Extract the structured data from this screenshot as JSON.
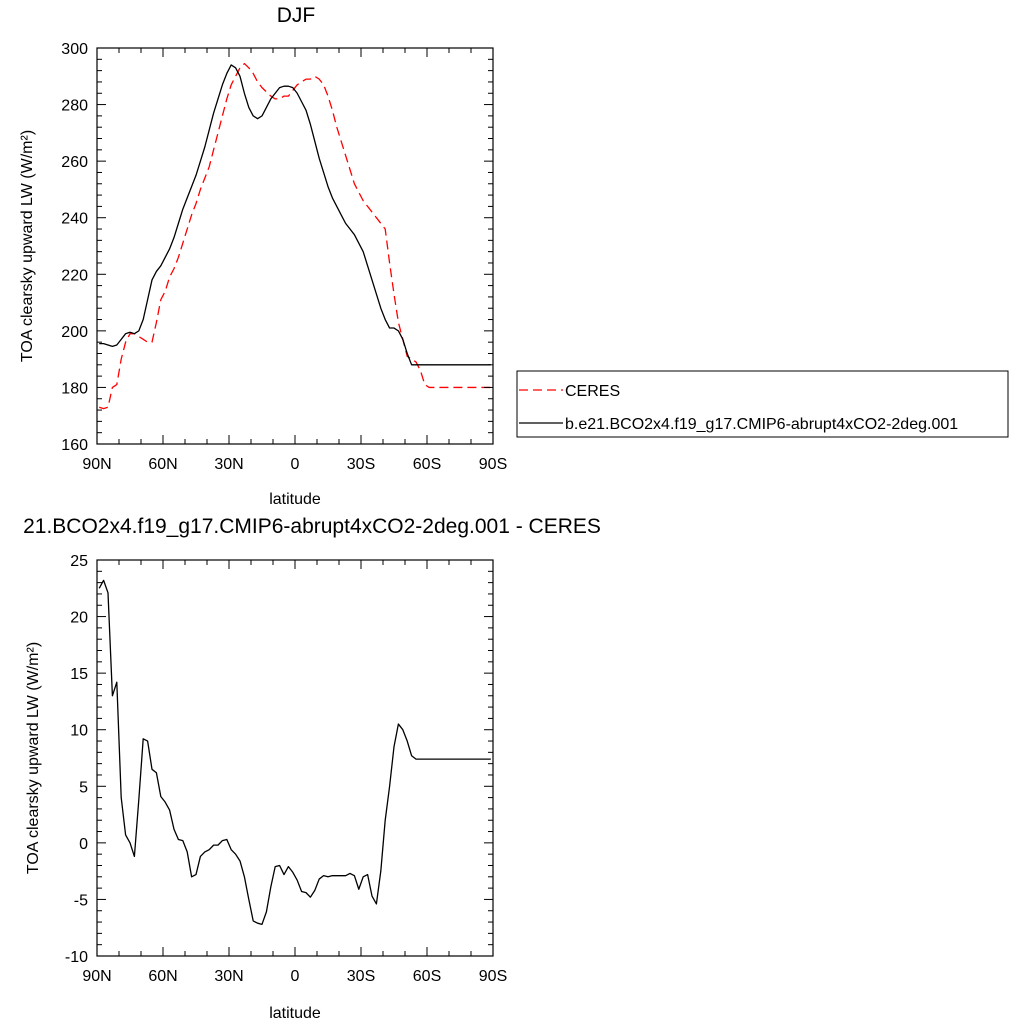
{
  "chart_data": [
    {
      "type": "line",
      "title": "DJF",
      "xlabel": "latitude",
      "ylabel": "TOA clearsky upward LW (W/m²)",
      "xlim": [
        90,
        -90
      ],
      "ylim": [
        160,
        300
      ],
      "yticks": [
        160,
        180,
        200,
        220,
        240,
        260,
        280,
        300
      ],
      "xticks": [
        {
          "value": 90,
          "label": "90N"
        },
        {
          "value": 60,
          "label": "60N"
        },
        {
          "value": 30,
          "label": "30N"
        },
        {
          "value": 0,
          "label": "0"
        },
        {
          "value": -30,
          "label": "30S"
        },
        {
          "value": -60,
          "label": "60S"
        },
        {
          "value": -90,
          "label": "90S"
        }
      ],
      "legend_position": "right",
      "series": [
        {
          "name": "CERES",
          "color": "#ff0000",
          "dash": "dashed",
          "x": [
            89,
            87,
            85,
            83,
            81,
            79,
            77,
            75,
            73,
            71,
            69,
            67,
            65,
            63,
            61,
            59,
            57,
            55,
            53,
            51,
            49,
            47,
            45,
            43,
            41,
            39,
            37,
            35,
            33,
            31,
            29,
            27,
            25,
            23,
            21,
            19,
            17,
            15,
            13,
            11,
            9,
            7,
            5,
            3,
            1,
            -1,
            -3,
            -5,
            -7,
            -9,
            -11,
            -13,
            -15,
            -17,
            -19,
            -21,
            -23,
            -25,
            -27,
            -29,
            -31,
            -33,
            -35,
            -37,
            -39,
            -41,
            -43,
            -45,
            -47,
            -49,
            -51,
            -53,
            -55,
            -57,
            -59,
            -61,
            -63,
            -65,
            -67,
            -69,
            -71,
            -73,
            -75,
            -77,
            -79,
            -81,
            -83,
            -85,
            -87,
            -89
          ],
          "y": [
            173,
            172.5,
            173,
            180,
            181,
            190,
            196,
            199,
            199,
            198,
            197,
            196,
            196,
            203,
            211,
            214,
            219,
            222,
            226,
            231,
            236,
            241,
            245,
            250,
            254,
            258,
            264,
            270,
            276,
            282,
            287,
            290,
            293,
            294.5,
            293,
            291,
            288,
            286,
            284.5,
            283,
            282,
            282,
            283,
            283,
            285,
            287,
            288,
            289,
            289,
            290,
            289,
            287,
            283,
            278,
            272,
            267,
            262,
            257,
            252,
            249,
            246,
            244,
            242,
            240,
            238,
            236,
            224,
            213,
            203,
            197,
            191,
            190,
            189,
            186,
            181,
            180,
            180,
            180,
            180,
            180,
            180,
            180,
            180,
            180,
            180,
            180,
            180,
            180,
            180,
            180
          ]
        },
        {
          "name": "b.e21.BCO2x4.f19_g17.CMIP6-abrupt4xCO2-2deg.001",
          "color": "#000000",
          "dash": "solid",
          "x": [
            89,
            87,
            85,
            83,
            81,
            79,
            77,
            75,
            73,
            71,
            69,
            67,
            65,
            63,
            61,
            59,
            57,
            55,
            53,
            51,
            49,
            47,
            45,
            43,
            41,
            39,
            37,
            35,
            33,
            31,
            29,
            27,
            25,
            23,
            21,
            19,
            17,
            15,
            13,
            11,
            9,
            7,
            5,
            3,
            1,
            -1,
            -3,
            -5,
            -7,
            -9,
            -11,
            -13,
            -15,
            -17,
            -19,
            -21,
            -23,
            -25,
            -27,
            -29,
            -31,
            -33,
            -35,
            -37,
            -39,
            -41,
            -43,
            -45,
            -47,
            -49,
            -51,
            -53,
            -55,
            -57,
            -59,
            -61,
            -63,
            -65,
            -67,
            -69,
            -71,
            -73,
            -75,
            -77,
            -79,
            -81,
            -83,
            -85,
            -87,
            -89
          ],
          "y": [
            195.5,
            195.5,
            195,
            194.5,
            195,
            197,
            199,
            199.5,
            199,
            200,
            204,
            211,
            218,
            221,
            223,
            226,
            229,
            233,
            238,
            243,
            247,
            251,
            255,
            260,
            265,
            271,
            277,
            282,
            287,
            291,
            294,
            293,
            290,
            284,
            279,
            276,
            275,
            276,
            279,
            282,
            284,
            286,
            286.5,
            286.5,
            286,
            284,
            281,
            278,
            273,
            267,
            261,
            256,
            251,
            247,
            244,
            241,
            238,
            236,
            234,
            231,
            228,
            223,
            218,
            213,
            208,
            204,
            201,
            201,
            200,
            197,
            192,
            188,
            188,
            188,
            188,
            188,
            188,
            188,
            188,
            188,
            188,
            188,
            188,
            188,
            188,
            188,
            188,
            188,
            188,
            188
          ]
        }
      ]
    },
    {
      "type": "line",
      "title": "21.BCO2x4.f19_g17.CMIP6-abrupt4xCO2-2deg.001 - CERES",
      "xlabel": "latitude",
      "ylabel": "TOA clearsky upward LW (W/m²)",
      "xlim": [
        90,
        -90
      ],
      "ylim": [
        -10,
        25
      ],
      "yticks": [
        -10,
        -5,
        0,
        5,
        10,
        15,
        20,
        25
      ],
      "ytick_labels": [
        "-10",
        "-5",
        "0",
        "5",
        "10",
        "15",
        "20",
        "25"
      ],
      "xticks": [
        {
          "value": 90,
          "label": "90N"
        },
        {
          "value": 60,
          "label": "60N"
        },
        {
          "value": 30,
          "label": "30N"
        },
        {
          "value": 0,
          "label": "0"
        },
        {
          "value": -30,
          "label": "30S"
        },
        {
          "value": -60,
          "label": "60S"
        },
        {
          "value": -90,
          "label": "90S"
        }
      ],
      "series": [
        {
          "color": "#000000",
          "dash": "solid",
          "x": [
            89,
            87,
            85,
            83,
            81,
            79,
            77,
            75,
            73,
            71,
            69,
            67,
            65,
            63,
            61,
            59,
            57,
            55,
            53,
            51,
            49,
            47,
            45,
            43,
            41,
            39,
            37,
            35,
            33,
            31,
            29,
            27,
            25,
            23,
            21,
            19,
            17,
            15,
            13,
            11,
            9,
            7,
            5,
            3,
            1,
            -1,
            -3,
            -5,
            -7,
            -9,
            -11,
            -13,
            -15,
            -17,
            -19,
            -21,
            -23,
            -25,
            -27,
            -29,
            -31,
            -33,
            -35,
            -37,
            -39,
            -41,
            -43,
            -45,
            -47,
            -49,
            -51,
            -53,
            -55,
            -57,
            -59,
            -61,
            -63,
            -65,
            -67,
            -69,
            -71,
            -73,
            -75,
            -77,
            -79,
            -81,
            -83,
            -85,
            -87,
            -89
          ],
          "y": [
            22.5,
            23.2,
            22.1,
            13,
            14.2,
            4,
            0.7,
            0,
            -1.2,
            3.8,
            9.2,
            9.0,
            6.5,
            6.2,
            4.1,
            3.6,
            2.9,
            1.2,
            0.3,
            0.2,
            -0.8,
            -3,
            -2.8,
            -1.2,
            -0.8,
            -0.6,
            -0.2,
            -0.2,
            0.2,
            0.3,
            -0.6,
            -1.0,
            -1.6,
            -3,
            -5,
            -6.9,
            -7.1,
            -7.2,
            -6.1,
            -3.9,
            -2.1,
            -2.0,
            -2.8,
            -2.1,
            -2.6,
            -3.3,
            -4.3,
            -4.4,
            -4.8,
            -4.2,
            -3.2,
            -2.9,
            -3.0,
            -2.9,
            -2.9,
            -2.9,
            -2.9,
            -2.7,
            -2.9,
            -4.1,
            -3.0,
            -2.8,
            -4.7,
            -5.4,
            -2.5,
            2,
            5,
            8.5,
            10.5,
            10,
            9,
            7.7,
            7.4,
            7.4,
            7.4,
            7.4,
            7.4,
            7.4,
            7.4,
            7.4,
            7.4,
            7.4,
            7.4,
            7.4,
            7.4,
            7.4,
            7.4,
            7.4,
            7.4,
            7.4
          ]
        }
      ]
    }
  ]
}
